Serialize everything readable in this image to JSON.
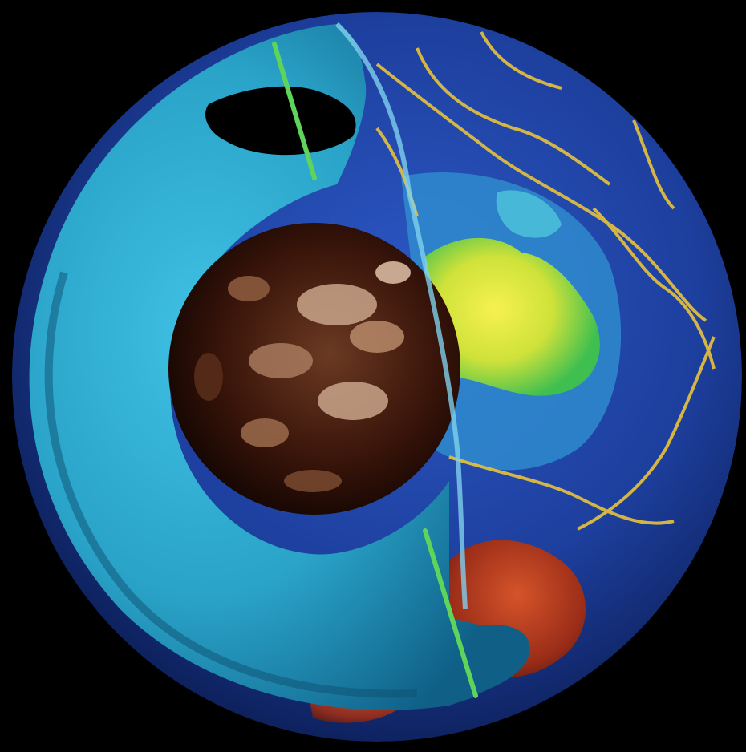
{
  "diagram": {
    "kind": "earth-interior-cutaway",
    "text": [],
    "layers": [
      {
        "id": "crust-surface",
        "depicts": "topography-bathymetry-map"
      },
      {
        "id": "mantle-cut",
        "depicts": "cutaway-mantle-shell"
      },
      {
        "id": "core",
        "depicts": "outer-core-sphere"
      },
      {
        "id": "rotation-axis",
        "depicts": "spin-axis-line"
      }
    ],
    "colors": {
      "background": "#000000",
      "mantle": "#2aa3c8",
      "mantle_deep": "#0f5f86",
      "ocean": "#1d3f9e",
      "land_yellow": "#f2ec3a",
      "land_green": "#3fbf4f",
      "plate_boundary": "#e8c23c",
      "antarctica": "#b23a1e",
      "core_dark": "#2a0d05",
      "core_light": "#c9a58a",
      "axis": "#5fd45a"
    }
  }
}
